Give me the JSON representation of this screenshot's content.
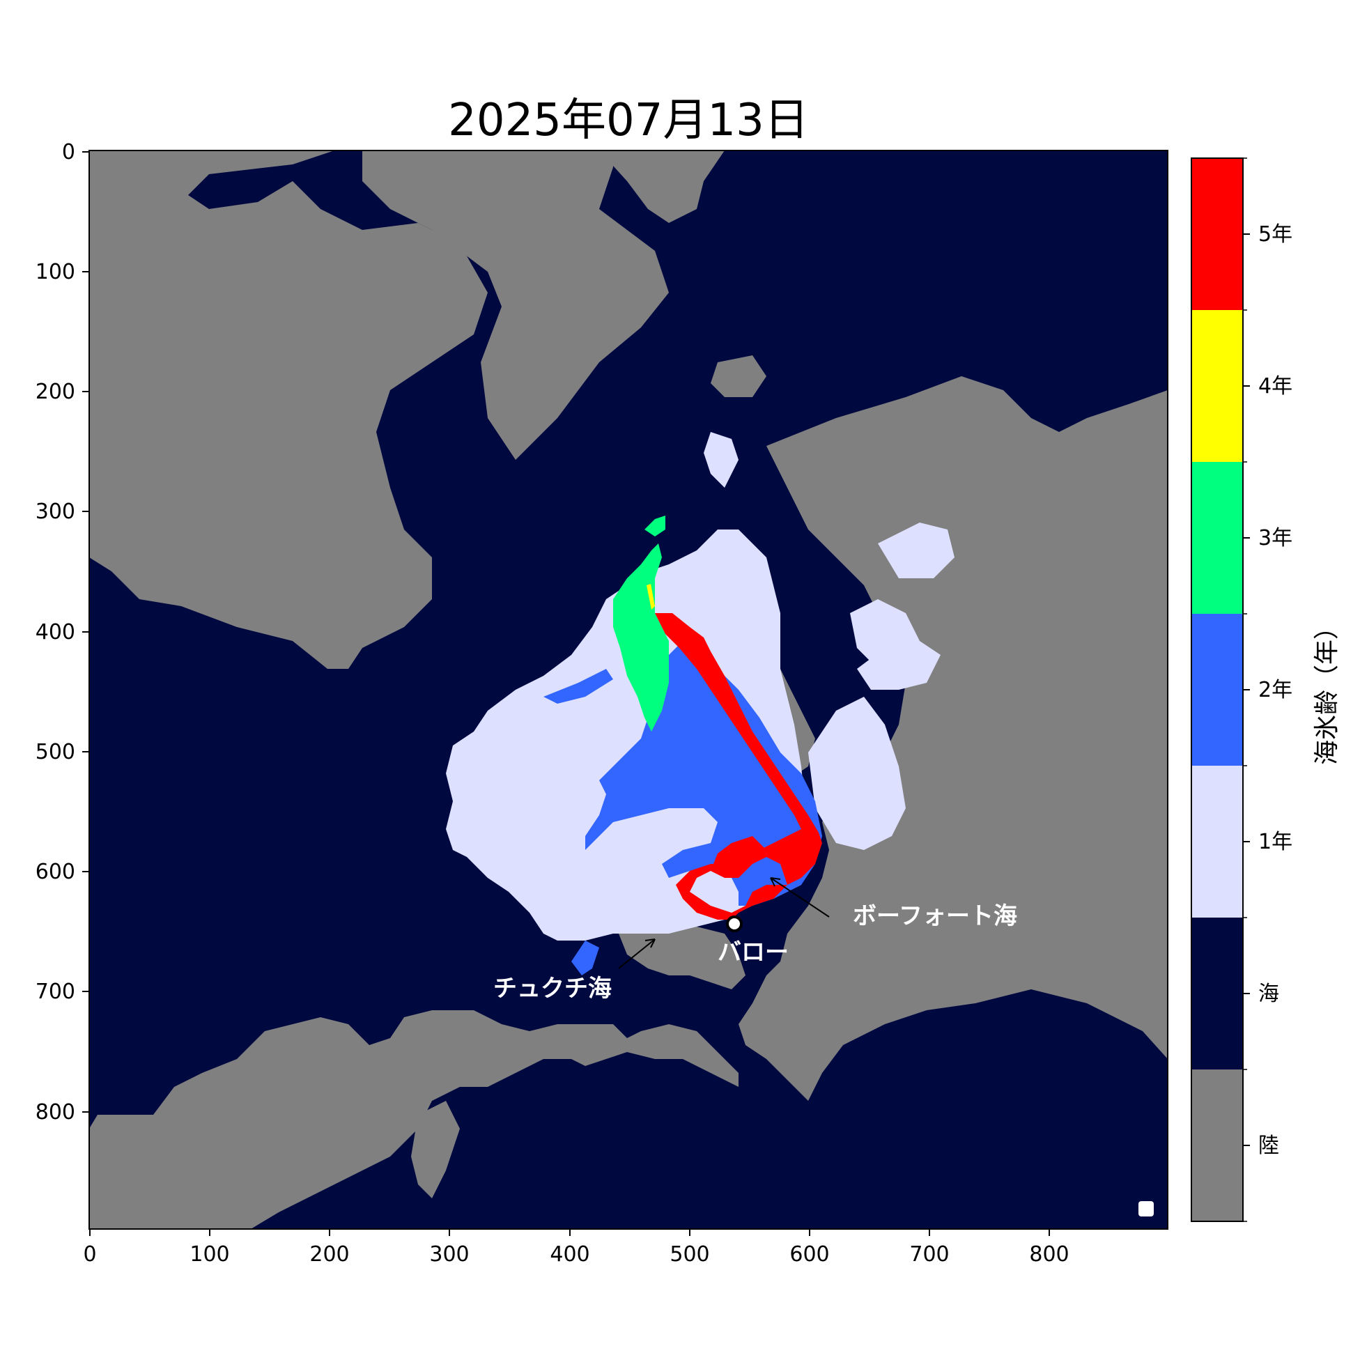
{
  "title": "2025年07月13日",
  "map": {
    "x_ticks": [
      "0",
      "100",
      "200",
      "300",
      "400",
      "500",
      "600",
      "700",
      "800"
    ],
    "y_ticks": [
      "0",
      "100",
      "200",
      "300",
      "400",
      "500",
      "600",
      "700",
      "800"
    ],
    "x_range": [
      0,
      898
    ],
    "y_range": [
      0,
      898
    ],
    "land_color": "#808080",
    "sea_color": "#000840",
    "annotations": [
      {
        "id": "beaufort",
        "label": "ボーフォート海"
      },
      {
        "id": "barrow",
        "label": "バロー"
      },
      {
        "id": "chukchi",
        "label": "チュクチ海"
      }
    ],
    "marker": {
      "label_ref": "barrow",
      "x": 537,
      "y": 645
    }
  },
  "colorbar": {
    "label": "海氷齢（年）",
    "entries": [
      {
        "label": "5年",
        "color": "#ff0000"
      },
      {
        "label": "4年",
        "color": "#ffff00"
      },
      {
        "label": "3年",
        "color": "#00ff7f"
      },
      {
        "label": "2年",
        "color": "#3366ff"
      },
      {
        "label": "1年",
        "color": "#dde0ff"
      },
      {
        "label": "海",
        "color": "#000840"
      },
      {
        "label": "陸",
        "color": "#808080"
      }
    ]
  }
}
